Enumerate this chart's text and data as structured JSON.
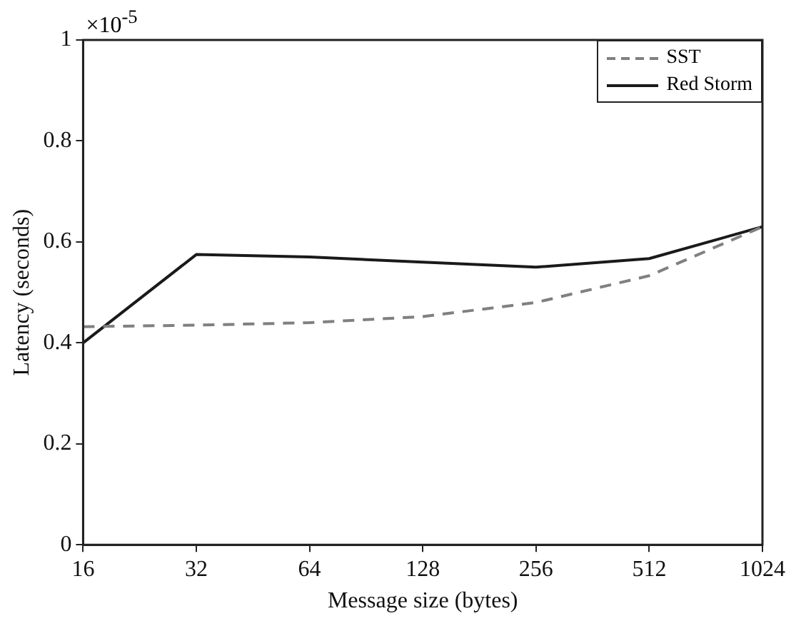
{
  "chart_data": {
    "type": "line",
    "xlabel": "Message size (bytes)",
    "ylabel": "Latency (seconds)",
    "annotations": [
      "×10$^{-5}$"
    ],
    "categories": [
      "16",
      "32",
      "64",
      "128",
      "256",
      "512",
      "1024"
    ],
    "ylim": [
      0,
      1
    ],
    "yticks": [
      0,
      0.2,
      0.4,
      0.6,
      0.8,
      1
    ],
    "grid": false,
    "legend": "top right",
    "marker": "none",
    "series": [
      {
        "name": "SST",
        "color": "#808080",
        "line_style": "dashed",
        "values": [
          0.432,
          0.435,
          0.44,
          0.452,
          0.48,
          0.533,
          0.63
        ]
      },
      {
        "name": "Red Storm",
        "color": "#1a1a1a",
        "line_style": "solid",
        "values": [
          0.4,
          0.575,
          0.57,
          0.56,
          0.55,
          0.567,
          0.63
        ]
      }
    ]
  }
}
